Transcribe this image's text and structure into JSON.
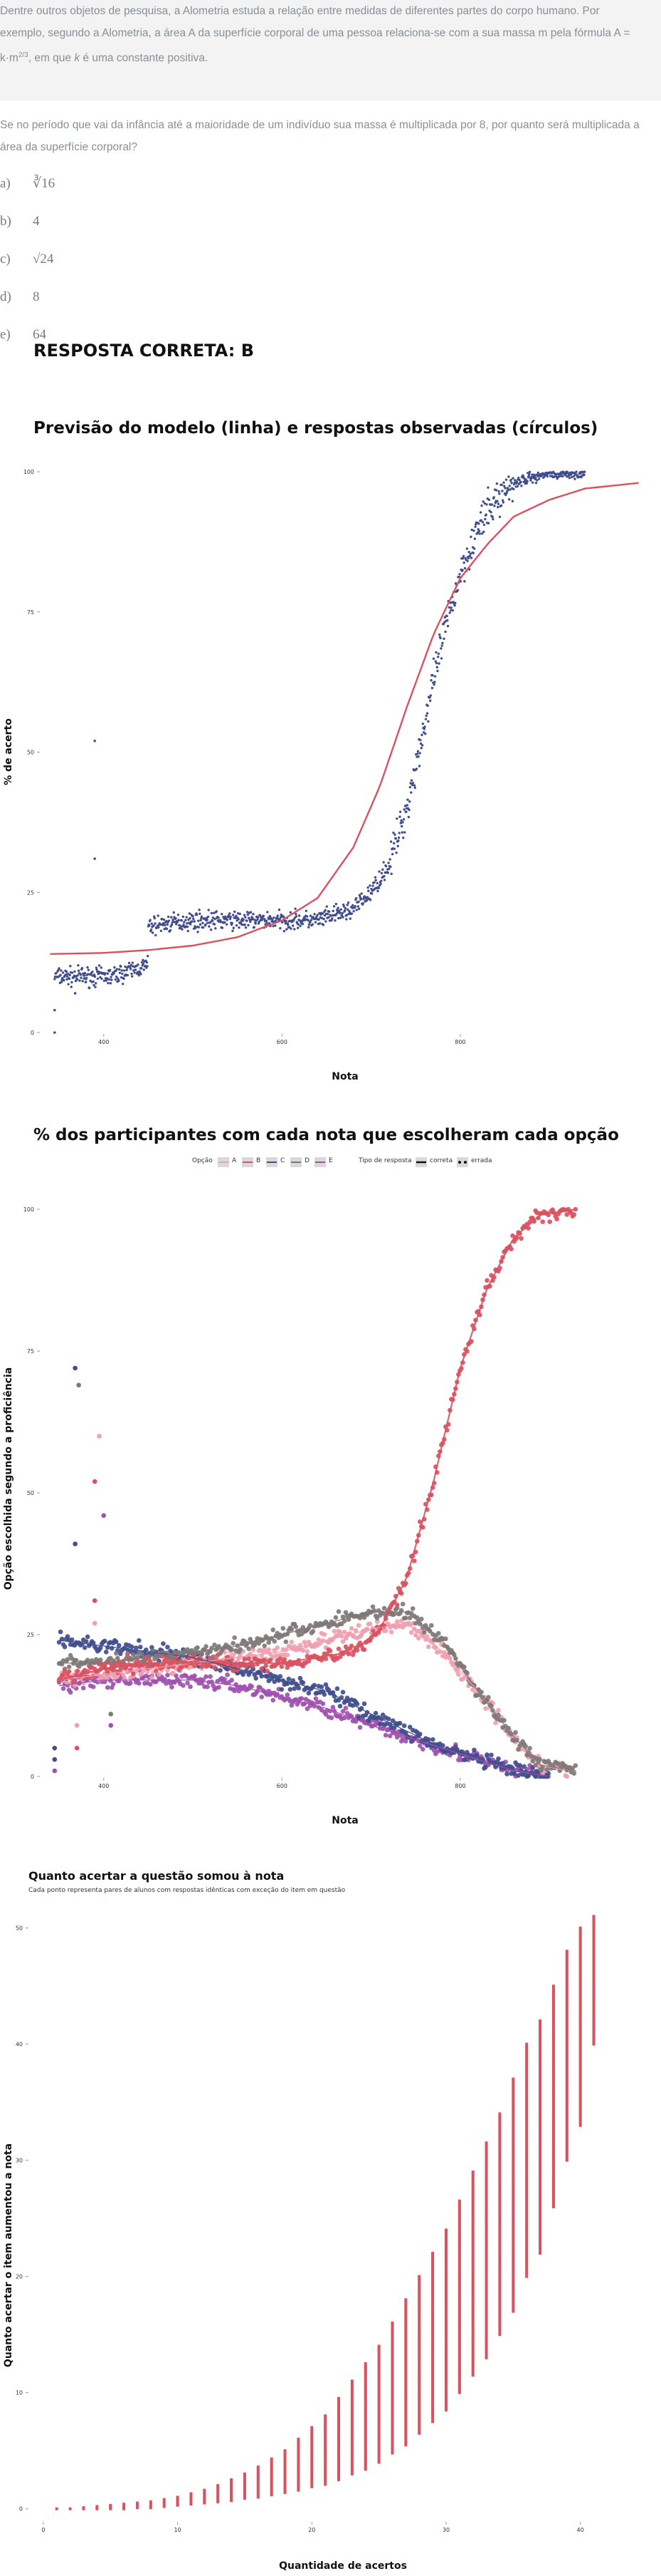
{
  "intro": {
    "l1": "Dentre outros objetos de pesquisa, a Alometria estuda a relação entre medidas de diferentes partes do corpo humano. Por",
    "l2": "exemplo, segundo a Alometria, a área A da superfície corporal de uma pessoa relaciona-se com a sua massa m pela fórmula A =",
    "l3a": "k·m",
    "l3sup": "2/3",
    "l3b": ", em que ",
    "l3k": "k",
    "l3c": " é uma constante positiva."
  },
  "question": {
    "l1": "Se no período que vai da infância até a maioridade de um indivíduo sua massa é multiplicada por 8, por quanto será multiplicada a",
    "l2": "área da superfície corporal?"
  },
  "options": [
    {
      "label": "a)",
      "text": "∛16"
    },
    {
      "label": "b)",
      "text": "4"
    },
    {
      "label": "c)",
      "text": "√24"
    },
    {
      "label": "d)",
      "text": "8"
    },
    {
      "label": "e)",
      "text": "64"
    }
  ],
  "answer": "RESPOSTA CORRETA: B",
  "colors": {
    "A": "#f0a0b0",
    "B": "#d9525f",
    "C": "#404e8c",
    "D": "#807878",
    "E": "#a050b0"
  },
  "chart_data": [
    {
      "type": "scatter",
      "title": "Previsão do modelo (linha) e respostas observadas (círculos)",
      "xlabel": "Nota",
      "ylabel": "% de acerto",
      "x_ticks": [
        "400",
        "600",
        "800"
      ],
      "y_ticks": [
        "0",
        "25",
        "50",
        "75",
        "100"
      ],
      "xlim": [
        330,
        1010
      ],
      "ylim": [
        0,
        100
      ],
      "series": [
        {
          "role": "observed",
          "points": [
            [
              345,
              0
            ],
            [
              345,
              4
            ],
            [
              368,
              7
            ],
            [
              380,
              9
            ],
            [
              390,
              31
            ],
            [
              390,
              52
            ],
            [
              408,
              10
            ],
            [
              450,
              12
            ],
            [
              400,
              19
            ],
            [
              450,
              19
            ],
            [
              500,
              20
            ],
            [
              550,
              20
            ],
            [
              600,
              20
            ],
            [
              640,
              20
            ],
            [
              680,
              22
            ],
            [
              700,
              25
            ],
            [
              720,
              30
            ],
            [
              740,
              40
            ],
            [
              760,
              55
            ],
            [
              780,
              70
            ],
            [
              800,
              82
            ],
            [
              820,
              90
            ],
            [
              840,
              95
            ],
            [
              860,
              98
            ],
            [
              880,
              99
            ],
            [
              900,
              100
            ],
            [
              930,
              100
            ]
          ]
        },
        {
          "role": "model",
          "points": [
            [
              340,
              14
            ],
            [
              400,
              14.2
            ],
            [
              450,
              14.7
            ],
            [
              500,
              15.5
            ],
            [
              550,
              17
            ],
            [
              600,
              20
            ],
            [
              640,
              24
            ],
            [
              680,
              33
            ],
            [
              710,
              44
            ],
            [
              740,
              58
            ],
            [
              770,
              71
            ],
            [
              800,
              81
            ],
            [
              830,
              87
            ],
            [
              860,
              92
            ],
            [
              900,
              95
            ],
            [
              940,
              97
            ],
            [
              1000,
              98
            ]
          ]
        }
      ]
    },
    {
      "type": "line",
      "title": "% dos participantes com cada nota que escolheram cada opção",
      "xlabel": "Nota",
      "ylabel": "Opção escolhida segundo a proficiência",
      "legend": {
        "option_title": "Opção",
        "options": [
          "A",
          "B",
          "C",
          "D",
          "E"
        ],
        "type_title": "Tipo de resposta",
        "types": [
          "correta",
          "errada"
        ]
      },
      "x_ticks": [
        "400",
        "600",
        "800"
      ],
      "y_ticks": [
        "0",
        "25",
        "50",
        "75",
        "100"
      ],
      "xlim": [
        330,
        1010
      ],
      "ylim": [
        0,
        100
      ],
      "series": [
        {
          "name": "A",
          "points": [
            [
              350,
              17
            ],
            [
              400,
              18
            ],
            [
              450,
              19
            ],
            [
              500,
              20
            ],
            [
              550,
              21
            ],
            [
              600,
              22
            ],
            [
              650,
              24
            ],
            [
              700,
              26
            ],
            [
              740,
              27
            ],
            [
              780,
              22
            ],
            [
              820,
              15
            ],
            [
              860,
              7
            ],
            [
              890,
              2
            ],
            [
              920,
              1
            ]
          ]
        },
        {
          "name": "B",
          "points": [
            [
              350,
              17
            ],
            [
              400,
              19
            ],
            [
              450,
              20
            ],
            [
              500,
              20
            ],
            [
              550,
              20
            ],
            [
              600,
              20
            ],
            [
              640,
              21
            ],
            [
              680,
              22
            ],
            [
              710,
              26
            ],
            [
              740,
              35
            ],
            [
              770,
              52
            ],
            [
              800,
              72
            ],
            [
              830,
              86
            ],
            [
              860,
              95
            ],
            [
              890,
              99
            ],
            [
              930,
              100
            ]
          ]
        },
        {
          "name": "C",
          "points": [
            [
              350,
              24
            ],
            [
              400,
              23
            ],
            [
              450,
              22
            ],
            [
              500,
              21
            ],
            [
              550,
              19
            ],
            [
              600,
              17
            ],
            [
              650,
              15
            ],
            [
              700,
              11
            ],
            [
              740,
              8
            ],
            [
              780,
              5
            ],
            [
              820,
              3
            ],
            [
              860,
              1
            ],
            [
              900,
              0
            ]
          ]
        },
        {
          "name": "D",
          "points": [
            [
              350,
              20
            ],
            [
              400,
              20
            ],
            [
              450,
              21
            ],
            [
              500,
              22
            ],
            [
              550,
              23
            ],
            [
              600,
              25
            ],
            [
              650,
              27
            ],
            [
              700,
              29
            ],
            [
              740,
              29
            ],
            [
              780,
              24
            ],
            [
              820,
              15
            ],
            [
              860,
              7
            ],
            [
              890,
              2
            ],
            [
              930,
              1
            ]
          ]
        },
        {
          "name": "E",
          "points": [
            [
              350,
              16
            ],
            [
              400,
              17
            ],
            [
              450,
              17
            ],
            [
              500,
              17
            ],
            [
              550,
              16
            ],
            [
              600,
              14
            ],
            [
              650,
              12
            ],
            [
              700,
              9
            ],
            [
              740,
              7
            ],
            [
              780,
              5
            ],
            [
              820,
              3
            ],
            [
              860,
              1
            ],
            [
              900,
              0
            ]
          ]
        }
      ]
    },
    {
      "type": "scatter",
      "title": "Quanto acertar a questão somou à nota",
      "subtitle": "Cada ponto representa pares de alunos com respostas idênticas com exceção do item em questão",
      "xlabel": "Quantidade de acertos",
      "ylabel": "Quanto acertar o item aumentou a nota",
      "x_ticks": [
        "0",
        "10",
        "20",
        "30",
        "40"
      ],
      "y_ticks": [
        "0",
        "10",
        "20",
        "30",
        "40",
        "50"
      ],
      "xlim": [
        -1,
        45
      ],
      "ylim": [
        -1,
        52
      ],
      "columns": [
        [
          1,
          0,
          0
        ],
        [
          2,
          0,
          0
        ],
        [
          3,
          0,
          0.1
        ],
        [
          4,
          0,
          0.2
        ],
        [
          5,
          0,
          0.3
        ],
        [
          6,
          0,
          0.4
        ],
        [
          7,
          0.1,
          0.5
        ],
        [
          8,
          0.1,
          0.6
        ],
        [
          9,
          0.2,
          0.8
        ],
        [
          10,
          0.3,
          1
        ],
        [
          11,
          0.4,
          1.3
        ],
        [
          12,
          0.5,
          1.6
        ],
        [
          13,
          0.6,
          2
        ],
        [
          14,
          0.7,
          2.5
        ],
        [
          15,
          0.9,
          3
        ],
        [
          16,
          1,
          3.6
        ],
        [
          17,
          1.2,
          4.3
        ],
        [
          18,
          1.4,
          5
        ],
        [
          19,
          1.6,
          6
        ],
        [
          20,
          1.9,
          7
        ],
        [
          21,
          2.1,
          8
        ],
        [
          22,
          2.5,
          9.5
        ],
        [
          23,
          3,
          11
        ],
        [
          24,
          3.4,
          12.5
        ],
        [
          25,
          4,
          14
        ],
        [
          26,
          4.8,
          16
        ],
        [
          27,
          5.5,
          18
        ],
        [
          28,
          6.5,
          20
        ],
        [
          29,
          7.5,
          22
        ],
        [
          30,
          8.5,
          24
        ],
        [
          31,
          10,
          26.5
        ],
        [
          32,
          11.5,
          29
        ],
        [
          33,
          13,
          31.5
        ],
        [
          34,
          15,
          34
        ],
        [
          35,
          17,
          37
        ],
        [
          36,
          20,
          40
        ],
        [
          37,
          22,
          42
        ],
        [
          38,
          26,
          45
        ],
        [
          39,
          30,
          48
        ],
        [
          40,
          33,
          50
        ],
        [
          41,
          40,
          51
        ]
      ]
    }
  ]
}
